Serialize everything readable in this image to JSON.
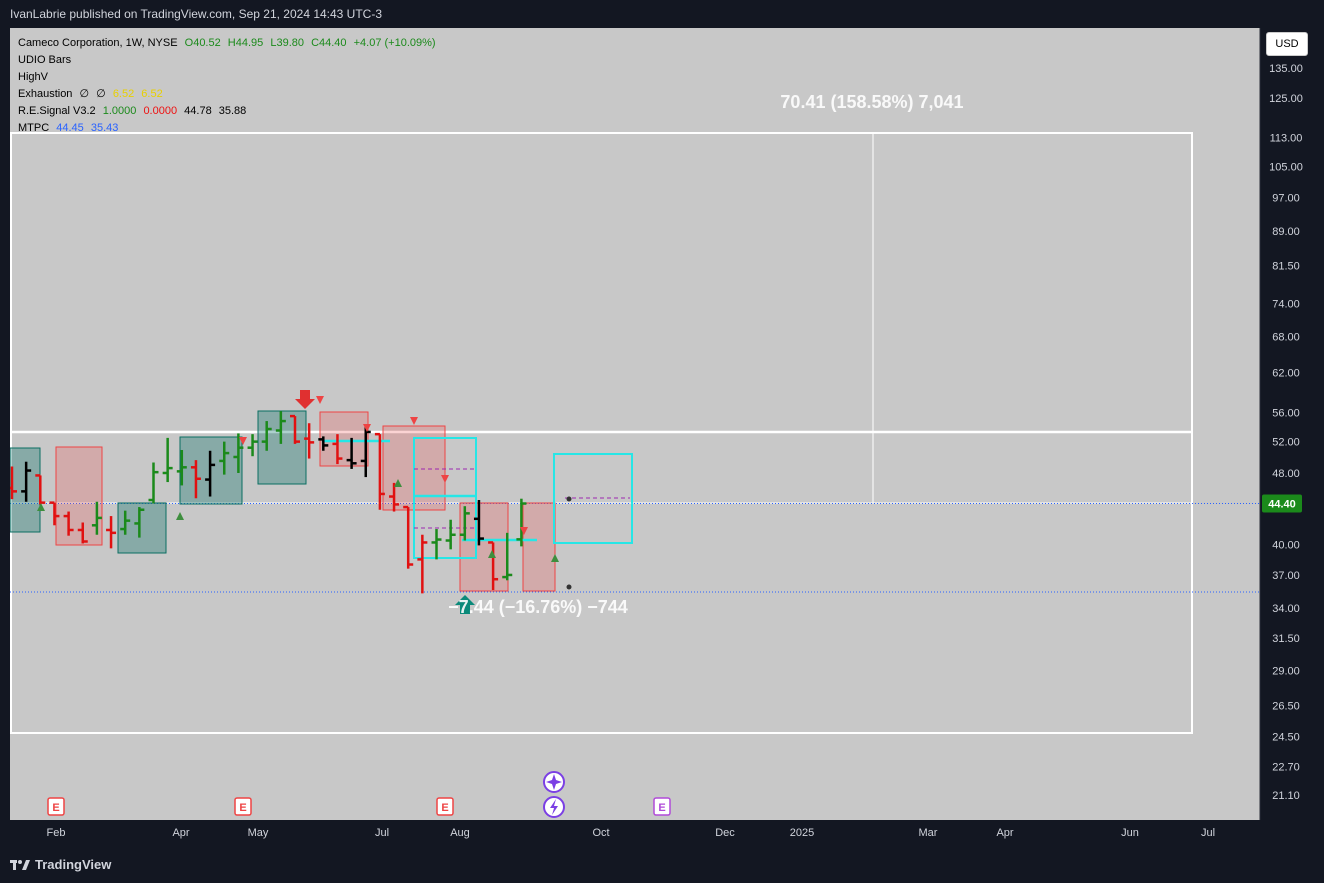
{
  "header": {
    "publish_line": "IvanLabrie published on TradingView.com, Sep 21, 2024 14:43 UTC-3"
  },
  "legend": {
    "symbol": "Cameco Corporation, 1W, NYSE",
    "ohlc": {
      "o": "O40.52",
      "h": "H44.95",
      "l": "L39.80",
      "c": "C44.40",
      "chg": "+4.07 (+10.09%)"
    },
    "indicators": [
      {
        "name": "UDIO Bars"
      },
      {
        "name": "HighV"
      },
      {
        "name": "Exhaustion",
        "vals": [
          "∅",
          "∅",
          "6.52",
          "6.52"
        ]
      },
      {
        "name": "R.E.Signal V3.2",
        "vals": [
          "1.0000",
          "0.0000",
          "44.78",
          "35.88"
        ]
      },
      {
        "name": "MTPC",
        "vals": [
          "44.45",
          "35.43"
        ]
      }
    ]
  },
  "currency_button": "USD",
  "footer": {
    "brand": "TradingView"
  },
  "colors": {
    "background": "#131722",
    "pane": "#c8c8c8",
    "up_bar": "#1b8a1b",
    "down_bar": "#e11111",
    "neutral_bar": "#000000",
    "cyan": "#26e6e6",
    "price_tag": "#1b8a1b"
  },
  "chart_data": {
    "type": "ohlc",
    "y_ticks": [
      "135.00",
      "125.00",
      "113.00",
      "105.00",
      "97.00",
      "89.00",
      "81.50",
      "74.00",
      "68.00",
      "62.00",
      "56.00",
      "52.00",
      "48.00",
      "44.40",
      "40.00",
      "37.00",
      "34.00",
      "31.50",
      "29.00",
      "26.50",
      "24.50",
      "22.70",
      "21.10"
    ],
    "y_tick_values": [
      135,
      125,
      113,
      105,
      97,
      89,
      81.5,
      74,
      68,
      62,
      56,
      52,
      48,
      44.4,
      40,
      37,
      34,
      31.5,
      29,
      26.5,
      24.5,
      22.7,
      21.1
    ],
    "y_scale": "log",
    "x_labels": [
      "Feb",
      "Apr",
      "May",
      "Jul",
      "Aug",
      "Oct",
      "Dec",
      "2025",
      "Mar",
      "Apr",
      "Jun",
      "Jul"
    ],
    "current_price": 44.4,
    "current_price_label": "44.40",
    "bars": [
      {
        "o": 46.2,
        "h": 48.8,
        "l": 44.9,
        "c": 45.8,
        "col": "dn"
      },
      {
        "o": 45.8,
        "h": 49.4,
        "l": 44.6,
        "c": 48.3,
        "col": "neu"
      },
      {
        "o": 47.7,
        "h": 47.7,
        "l": 44.3,
        "c": 44.5,
        "col": "dn"
      },
      {
        "o": 44.5,
        "h": 44.5,
        "l": 42.0,
        "c": 43.0,
        "col": "dn"
      },
      {
        "o": 43.0,
        "h": 43.5,
        "l": 40.9,
        "c": 41.5,
        "col": "dn"
      },
      {
        "o": 41.5,
        "h": 42.3,
        "l": 40.1,
        "c": 40.3,
        "col": "dn"
      },
      {
        "o": 42.0,
        "h": 44.6,
        "l": 41.0,
        "c": 42.8,
        "col": "up"
      },
      {
        "o": 41.5,
        "h": 43.0,
        "l": 39.6,
        "c": 41.2,
        "col": "dn"
      },
      {
        "o": 41.6,
        "h": 43.6,
        "l": 41.0,
        "c": 42.5,
        "col": "up"
      },
      {
        "o": 42.2,
        "h": 44.0,
        "l": 40.7,
        "c": 43.7,
        "col": "up"
      },
      {
        "o": 44.8,
        "h": 49.3,
        "l": 44.4,
        "c": 48.1,
        "col": "up"
      },
      {
        "o": 48.0,
        "h": 52.5,
        "l": 46.9,
        "c": 48.6,
        "col": "up"
      },
      {
        "o": 48.2,
        "h": 50.9,
        "l": 46.5,
        "c": 48.7,
        "col": "up"
      },
      {
        "o": 48.7,
        "h": 49.6,
        "l": 45.0,
        "c": 47.3,
        "col": "dn"
      },
      {
        "o": 47.2,
        "h": 50.8,
        "l": 45.2,
        "c": 49.0,
        "col": "neu"
      },
      {
        "o": 49.5,
        "h": 52.0,
        "l": 47.8,
        "c": 50.5,
        "col": "up"
      },
      {
        "o": 50.0,
        "h": 53.1,
        "l": 48.0,
        "c": 51.2,
        "col": "up"
      },
      {
        "o": 51.2,
        "h": 53.0,
        "l": 50.1,
        "c": 52.0,
        "col": "up"
      },
      {
        "o": 52.0,
        "h": 54.8,
        "l": 50.8,
        "c": 53.7,
        "col": "up"
      },
      {
        "o": 53.5,
        "h": 56.2,
        "l": 51.7,
        "c": 54.8,
        "col": "up"
      },
      {
        "o": 55.5,
        "h": 55.5,
        "l": 51.7,
        "c": 52.0,
        "col": "dn"
      },
      {
        "o": 52.4,
        "h": 54.5,
        "l": 49.8,
        "c": 51.9,
        "col": "dn"
      },
      {
        "o": 52.3,
        "h": 52.7,
        "l": 50.8,
        "c": 51.5,
        "col": "neu"
      },
      {
        "o": 51.7,
        "h": 53.0,
        "l": 49.1,
        "c": 49.8,
        "col": "dn"
      },
      {
        "o": 49.6,
        "h": 52.5,
        "l": 48.5,
        "c": 49.2,
        "col": "neu"
      },
      {
        "o": 49.5,
        "h": 54.1,
        "l": 47.5,
        "c": 53.3,
        "col": "neu"
      },
      {
        "o": 53.0,
        "h": 53.0,
        "l": 43.7,
        "c": 45.5,
        "col": "dn"
      },
      {
        "o": 45.2,
        "h": 46.8,
        "l": 43.5,
        "c": 44.3,
        "col": "dn"
      },
      {
        "o": 44.0,
        "h": 44.0,
        "l": 37.6,
        "c": 38.0,
        "col": "dn"
      },
      {
        "o": 38.5,
        "h": 41.0,
        "l": 35.3,
        "c": 40.2,
        "col": "dn"
      },
      {
        "o": 40.2,
        "h": 41.6,
        "l": 38.5,
        "c": 40.5,
        "col": "up"
      },
      {
        "o": 40.4,
        "h": 42.6,
        "l": 39.5,
        "c": 41.0,
        "col": "up"
      },
      {
        "o": 41.0,
        "h": 44.1,
        "l": 40.4,
        "c": 43.3,
        "col": "up"
      },
      {
        "o": 42.7,
        "h": 44.8,
        "l": 39.9,
        "c": 40.6,
        "col": "neu"
      },
      {
        "o": 40.2,
        "h": 40.2,
        "l": 35.6,
        "c": 36.6,
        "col": "dn"
      },
      {
        "o": 36.8,
        "h": 41.2,
        "l": 36.5,
        "c": 37.0,
        "col": "up"
      },
      {
        "o": 40.52,
        "h": 44.95,
        "l": 39.8,
        "c": 44.4,
        "col": "up"
      }
    ],
    "measure_top": {
      "label": "70.41 (158.58%) 7,041"
    },
    "measure_bottom": {
      "label": "−7.44 (−16.76%) −744"
    },
    "events": [
      {
        "type": "E",
        "x_label": "Feb"
      },
      {
        "type": "E",
        "x_label": "May"
      },
      {
        "type": "E",
        "x_label": "Jul-Aug"
      },
      {
        "type": "E",
        "x_label": "Oct-Dec",
        "style": "purple"
      }
    ]
  }
}
